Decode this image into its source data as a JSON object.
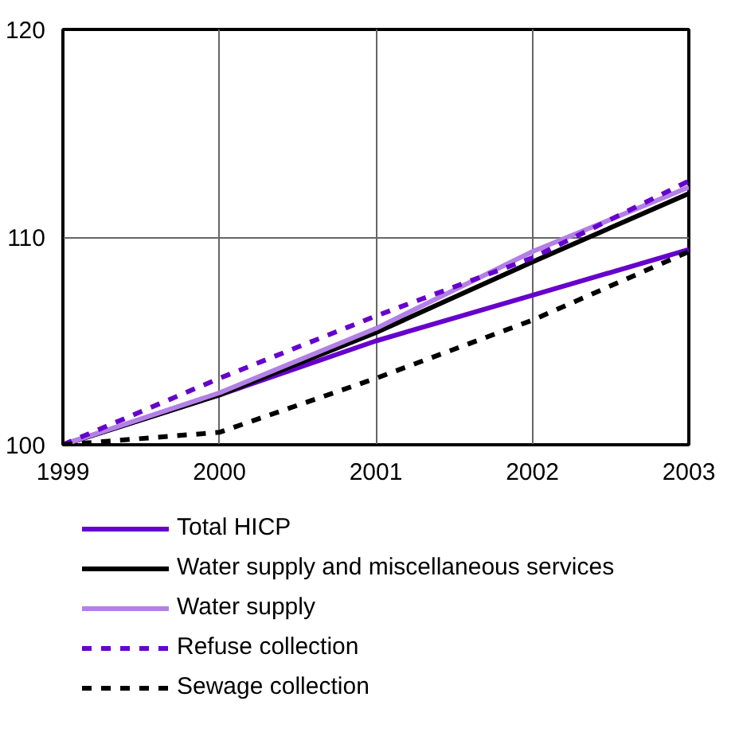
{
  "chart_data": {
    "type": "line",
    "x": [
      1999,
      2000,
      2001,
      2002,
      2003
    ],
    "xlim": [
      1999,
      2003
    ],
    "xticks": [
      1999,
      2000,
      2001,
      2002,
      2003
    ],
    "ylim": [
      100,
      120
    ],
    "yticks": [
      100,
      110,
      120
    ],
    "grid": true,
    "legend": "bottom",
    "series": [
      {
        "name": "Total HICP",
        "color": "#6600cc",
        "line_style": "solid",
        "values": [
          100,
          102.4,
          105.0,
          107.2,
          109.4
        ]
      },
      {
        "name": "Water supply and miscellaneous services",
        "color": "#000000",
        "line_style": "solid",
        "values": [
          100,
          102.4,
          105.4,
          108.8,
          112.1
        ]
      },
      {
        "name": "Water supply",
        "color": "#b380e6",
        "line_style": "solid",
        "values": [
          100,
          102.5,
          105.6,
          109.3,
          112.4
        ]
      },
      {
        "name": "Refuse collection",
        "color": "#6600cc",
        "line_style": "dashed",
        "values": [
          100,
          103.2,
          106.2,
          109.0,
          112.7
        ]
      },
      {
        "name": "Sewage collection",
        "color": "#000000",
        "line_style": "dashed",
        "values": [
          100,
          100.6,
          103.2,
          106.0,
          109.3
        ]
      }
    ]
  }
}
